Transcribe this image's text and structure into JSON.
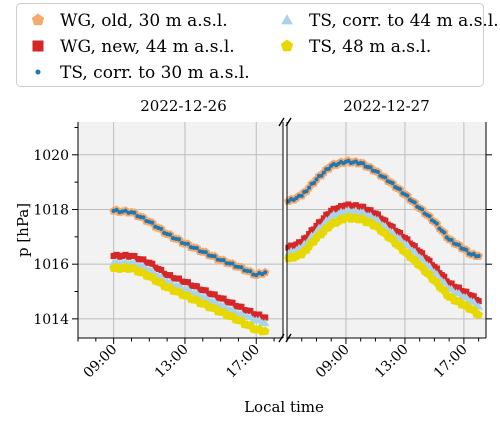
{
  "chart_data": {
    "type": "scatter",
    "ylabel": "p [hPa]",
    "xlabel": "Local time",
    "y_ticks": [
      1014,
      1016,
      1018,
      1020
    ],
    "ylim": [
      1013.3,
      1021.2
    ],
    "legend_position": "top",
    "panels": [
      {
        "title": "2022-12-26",
        "xlim": [
          7.0,
          18.5
        ],
        "x_ticks": [
          9,
          13,
          17
        ],
        "x_tick_labels": [
          "09:00",
          "13:00",
          "17:00"
        ],
        "x_unit": "hour of day"
      },
      {
        "title": "2022-12-27",
        "xlim": [
          5.0,
          18.5
        ],
        "x_ticks": [
          9,
          13,
          17
        ],
        "x_tick_labels": [
          "09:00",
          "13:00",
          "17:00"
        ],
        "x_unit": "hour of day"
      }
    ],
    "series": [
      {
        "name": "WG, old, 30 m a.s.l.",
        "marker": "pentagon",
        "color": "#f5a96b",
        "points_day1": [
          [
            9,
            1017.95
          ],
          [
            10,
            1017.9
          ],
          [
            11,
            1017.55
          ],
          [
            12,
            1017.1
          ],
          [
            13,
            1016.75
          ],
          [
            14,
            1016.45
          ],
          [
            15,
            1016.15
          ],
          [
            16,
            1015.9
          ],
          [
            17,
            1015.6
          ],
          [
            17.5,
            1015.7
          ]
        ],
        "points_day2": [
          [
            5.1,
            1018.3
          ],
          [
            6,
            1018.5
          ],
          [
            7,
            1019.1
          ],
          [
            8,
            1019.6
          ],
          [
            9,
            1019.75
          ],
          [
            10,
            1019.7
          ],
          [
            11,
            1019.4
          ],
          [
            12,
            1019.0
          ],
          [
            13,
            1018.55
          ],
          [
            14,
            1018.05
          ],
          [
            15,
            1017.55
          ],
          [
            16,
            1016.9
          ],
          [
            17,
            1016.55
          ],
          [
            17.5,
            1016.35
          ],
          [
            18,
            1016.3
          ]
        ]
      },
      {
        "name": "WG, new, 44 m a.s.l.",
        "marker": "square",
        "color": "#d62728",
        "points_day1": [
          [
            9,
            1016.3
          ],
          [
            10,
            1016.3
          ],
          [
            11,
            1016.05
          ],
          [
            12,
            1015.6
          ],
          [
            13,
            1015.35
          ],
          [
            14,
            1015.05
          ],
          [
            15,
            1014.75
          ],
          [
            16,
            1014.45
          ],
          [
            17,
            1014.15
          ],
          [
            17.5,
            1014.05
          ]
        ],
        "points_day2": [
          [
            5.1,
            1016.6
          ],
          [
            6,
            1016.8
          ],
          [
            7,
            1017.4
          ],
          [
            8,
            1017.95
          ],
          [
            9,
            1018.15
          ],
          [
            10,
            1018.1
          ],
          [
            11,
            1017.85
          ],
          [
            12,
            1017.4
          ],
          [
            13,
            1016.95
          ],
          [
            14,
            1016.45
          ],
          [
            15,
            1015.9
          ],
          [
            16,
            1015.3
          ],
          [
            17,
            1015.0
          ],
          [
            17.5,
            1014.85
          ],
          [
            18,
            1014.65
          ]
        ]
      },
      {
        "name": "TS, corr. to 30 m a.s.l.",
        "marker": "circle",
        "color": "#1f77b4",
        "points_day1": [
          [
            9,
            1017.95
          ],
          [
            10,
            1017.9
          ],
          [
            11,
            1017.55
          ],
          [
            12,
            1017.1
          ],
          [
            13,
            1016.75
          ],
          [
            14,
            1016.45
          ],
          [
            15,
            1016.15
          ],
          [
            16,
            1015.9
          ],
          [
            17,
            1015.6
          ],
          [
            17.5,
            1015.7
          ]
        ],
        "points_day2": [
          [
            5.1,
            1018.3
          ],
          [
            6,
            1018.5
          ],
          [
            7,
            1019.1
          ],
          [
            8,
            1019.6
          ],
          [
            9,
            1019.75
          ],
          [
            10,
            1019.7
          ],
          [
            11,
            1019.4
          ],
          [
            12,
            1019.0
          ],
          [
            13,
            1018.55
          ],
          [
            14,
            1018.05
          ],
          [
            15,
            1017.55
          ],
          [
            16,
            1016.9
          ],
          [
            17,
            1016.55
          ],
          [
            17.5,
            1016.35
          ],
          [
            18,
            1016.3
          ]
        ]
      },
      {
        "name": "TS, corr. to 44 m a.s.l.",
        "marker": "triangle",
        "color": "#a9d3e6",
        "points_day1": [
          [
            9,
            1016.05
          ],
          [
            10,
            1016.05
          ],
          [
            11,
            1015.8
          ],
          [
            12,
            1015.35
          ],
          [
            13,
            1015.1
          ],
          [
            14,
            1014.8
          ],
          [
            15,
            1014.5
          ],
          [
            16,
            1014.2
          ],
          [
            17,
            1013.95
          ],
          [
            17.5,
            1013.85
          ]
        ],
        "points_day2": [
          [
            5.1,
            1016.4
          ],
          [
            6,
            1016.6
          ],
          [
            7,
            1017.2
          ],
          [
            8,
            1017.75
          ],
          [
            9,
            1017.95
          ],
          [
            10,
            1017.9
          ],
          [
            11,
            1017.65
          ],
          [
            12,
            1017.2
          ],
          [
            13,
            1016.75
          ],
          [
            14,
            1016.25
          ],
          [
            15,
            1015.7
          ],
          [
            16,
            1015.1
          ],
          [
            17,
            1014.8
          ],
          [
            17.5,
            1014.65
          ],
          [
            18,
            1014.45
          ]
        ]
      },
      {
        "name": "TS, 48 m a.s.l.",
        "marker": "pentagon",
        "color": "#e6d800",
        "points_day1": [
          [
            9,
            1015.85
          ],
          [
            10,
            1015.85
          ],
          [
            11,
            1015.55
          ],
          [
            12,
            1015.15
          ],
          [
            13,
            1014.85
          ],
          [
            14,
            1014.55
          ],
          [
            15,
            1014.25
          ],
          [
            16,
            1013.95
          ],
          [
            17,
            1013.6
          ],
          [
            17.5,
            1013.55
          ]
        ],
        "points_day2": [
          [
            5.1,
            1016.2
          ],
          [
            6,
            1016.35
          ],
          [
            7,
            1016.95
          ],
          [
            8,
            1017.45
          ],
          [
            9,
            1017.7
          ],
          [
            10,
            1017.65
          ],
          [
            11,
            1017.4
          ],
          [
            12,
            1016.95
          ],
          [
            13,
            1016.45
          ],
          [
            14,
            1015.95
          ],
          [
            15,
            1015.4
          ],
          [
            16,
            1014.8
          ],
          [
            17,
            1014.5
          ],
          [
            17.5,
            1014.35
          ],
          [
            18,
            1014.15
          ]
        ]
      }
    ]
  }
}
